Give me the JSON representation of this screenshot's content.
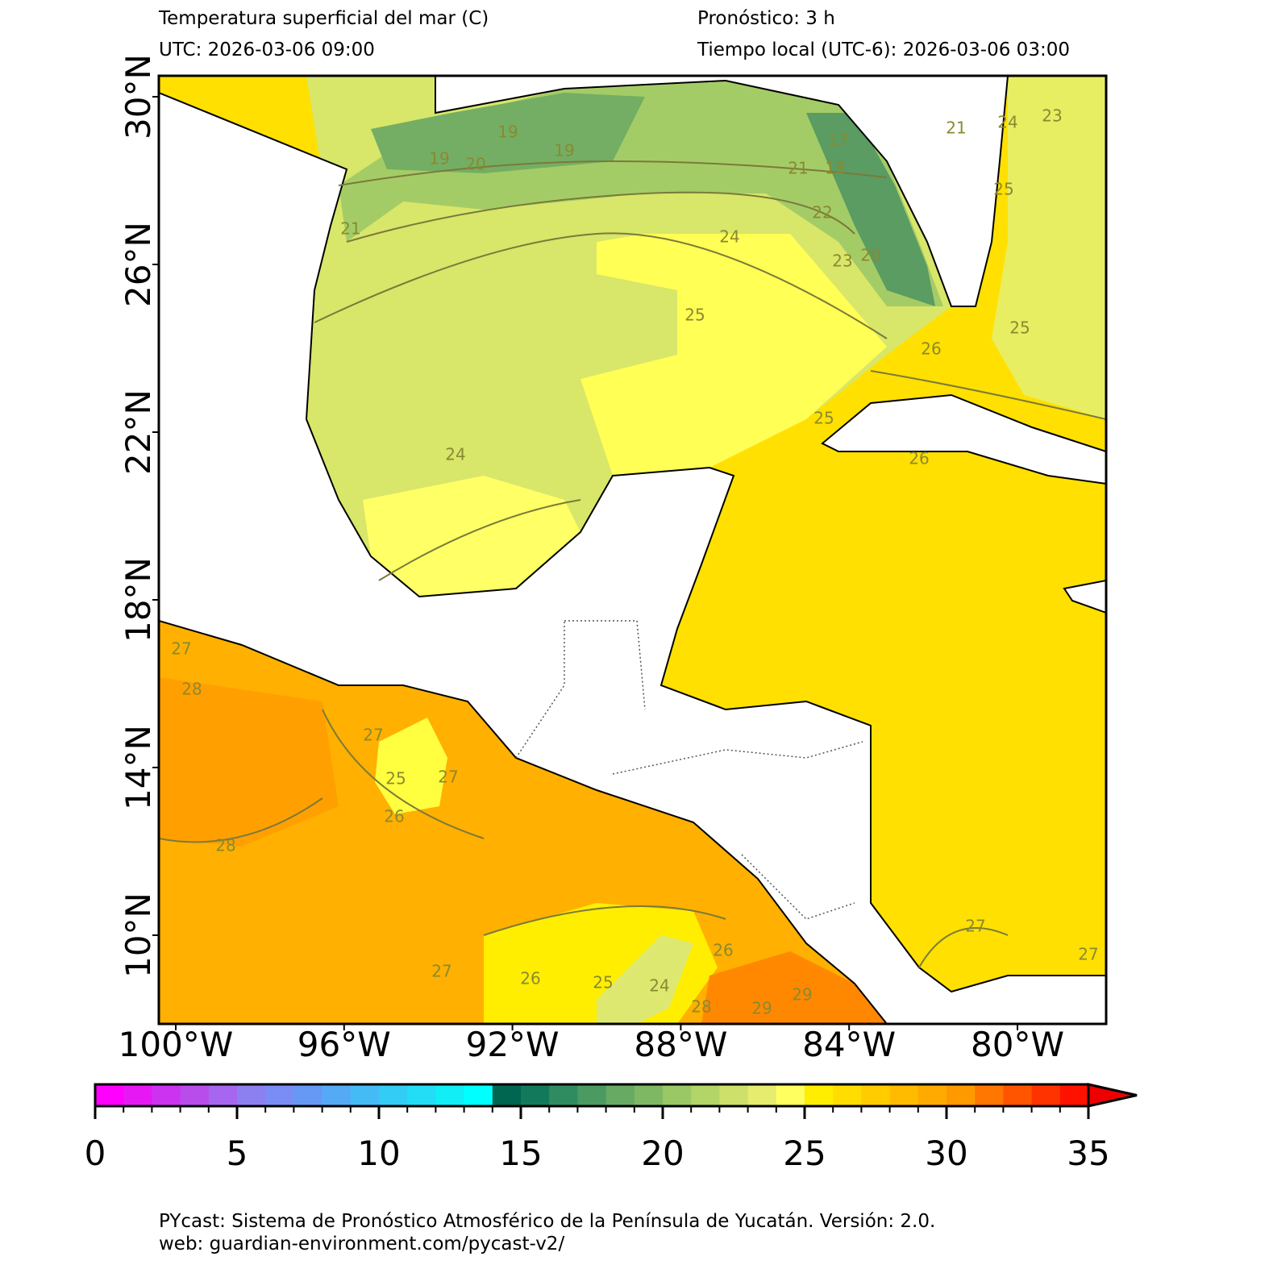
{
  "header": {
    "title": "Temperatura superficial del mar (C)",
    "forecast": "Pronóstico: 3 h",
    "utc": "UTC:  2026-03-06 09:00",
    "local": "Tiempo local (UTC-6): 2026-03-06 03:00"
  },
  "map": {
    "lon_ticks": [
      {
        "value": -100,
        "label": "100°W"
      },
      {
        "value": -96,
        "label": "96°W"
      },
      {
        "value": -92,
        "label": "92°W"
      },
      {
        "value": -88,
        "label": "88°W"
      },
      {
        "value": -84,
        "label": "84°W"
      },
      {
        "value": -80,
        "label": "80°W"
      }
    ],
    "lat_ticks": [
      {
        "value": 30,
        "label": "30°N"
      },
      {
        "value": 26,
        "label": "26°N"
      },
      {
        "value": 22,
        "label": "22°N"
      },
      {
        "value": 18,
        "label": "18°N"
      },
      {
        "value": 14,
        "label": "14°N"
      },
      {
        "value": 10,
        "label": "10°N"
      }
    ],
    "contour_labels": [
      19,
      20,
      19,
      21,
      19,
      21,
      17,
      18,
      22,
      23,
      20,
      24,
      25,
      26,
      25,
      24,
      25,
      26,
      25,
      27,
      28,
      27,
      25,
      26,
      27,
      28,
      27,
      26,
      25,
      24,
      28,
      29,
      29,
      26,
      27,
      27,
      24,
      23,
      21
    ]
  },
  "colorbar": {
    "lim": [
      0,
      35
    ],
    "ticks": [
      0,
      5,
      10,
      15,
      20,
      25,
      30,
      35
    ],
    "colors": [
      "#ff00ff",
      "#e619f5",
      "#cc33f0",
      "#b84deb",
      "#a666f0",
      "#8c80f0",
      "#7a8cf5",
      "#6699f5",
      "#55aaf5",
      "#44bbf5",
      "#33ccf5",
      "#22ddf5",
      "#11eef5",
      "#00ffff",
      "#006650",
      "#127a5a",
      "#2e8c60",
      "#4a9a62",
      "#66aa64",
      "#7fb863",
      "#99c864",
      "#b3d466",
      "#cce06a",
      "#e6ec6e",
      "#ffff60",
      "#ffee00",
      "#ffdd00",
      "#ffcc00",
      "#ffbb00",
      "#ffaa00",
      "#ff9900",
      "#ff7700",
      "#ff5500",
      "#ff3300",
      "#ff1100"
    ],
    "extend_color": "#ee0000"
  },
  "footer": {
    "line1": "PYcast: Sistema de Pronóstico Atmosférico de la Península de Yucatán. Versión: 2.0.",
    "line2": "web: guardian-environment.com/pycast-v2/"
  }
}
